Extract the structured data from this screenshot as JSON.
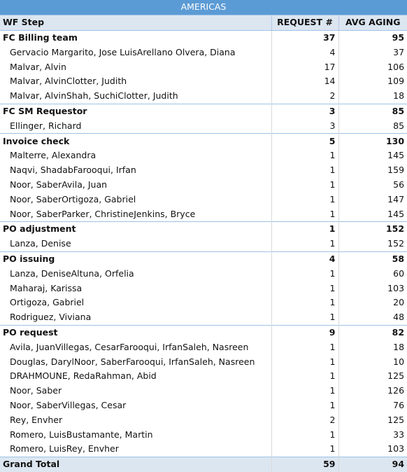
{
  "banner": "AMERICAS",
  "headers": {
    "step": "WF Step",
    "request": "REQUEST #",
    "aging": "AVG AGING"
  },
  "rows": [
    {
      "type": "group",
      "name": "FC Billing team",
      "request": "37",
      "aging": "95"
    },
    {
      "type": "detail",
      "name": "Gervacio Margarito, Jose LuisArellano Olvera, Diana",
      "request": "4",
      "aging": "37"
    },
    {
      "type": "detail",
      "name": "Malvar, Alvin",
      "request": "17",
      "aging": "106"
    },
    {
      "type": "detail",
      "name": "Malvar, AlvinClotter, Judith",
      "request": "14",
      "aging": "109"
    },
    {
      "type": "detail",
      "name": "Malvar, AlvinShah, SuchiClotter, Judith",
      "request": "2",
      "aging": "18"
    },
    {
      "type": "group",
      "name": "FC SM Requestor",
      "request": "3",
      "aging": "85"
    },
    {
      "type": "detail",
      "name": "Ellinger, Richard",
      "request": "3",
      "aging": "85"
    },
    {
      "type": "group",
      "name": "Invoice check",
      "request": "5",
      "aging": "130"
    },
    {
      "type": "detail",
      "name": "Malterre, Alexandra",
      "request": "1",
      "aging": "145"
    },
    {
      "type": "detail",
      "name": "Naqvi, ShadabFarooqui, Irfan",
      "request": "1",
      "aging": "159"
    },
    {
      "type": "detail",
      "name": "Noor, SaberAvila, Juan",
      "request": "1",
      "aging": "56"
    },
    {
      "type": "detail",
      "name": "Noor, SaberOrtigoza, Gabriel",
      "request": "1",
      "aging": "147"
    },
    {
      "type": "detail",
      "name": "Noor, SaberParker, ChristineJenkins, Bryce",
      "request": "1",
      "aging": "145"
    },
    {
      "type": "group",
      "name": "PO adjustment",
      "request": "1",
      "aging": "152"
    },
    {
      "type": "detail",
      "name": "Lanza, Denise",
      "request": "1",
      "aging": "152"
    },
    {
      "type": "group",
      "name": "PO issuing",
      "request": "4",
      "aging": "58"
    },
    {
      "type": "detail",
      "name": "Lanza, DeniseAltuna, Orfelia",
      "request": "1",
      "aging": "60"
    },
    {
      "type": "detail",
      "name": "Maharaj, Karissa",
      "request": "1",
      "aging": "103"
    },
    {
      "type": "detail",
      "name": "Ortigoza, Gabriel",
      "request": "1",
      "aging": "20"
    },
    {
      "type": "detail",
      "name": "Rodriguez, Viviana",
      "request": "1",
      "aging": "48"
    },
    {
      "type": "group",
      "name": "PO request",
      "request": "9",
      "aging": "82"
    },
    {
      "type": "detail",
      "name": "Avila, JuanVillegas, CesarFarooqui, IrfanSaleh, Nasreen",
      "request": "1",
      "aging": "18"
    },
    {
      "type": "detail",
      "name": "Douglas, DarylNoor, SaberFarooqui, IrfanSaleh, Nasreen",
      "request": "1",
      "aging": "10"
    },
    {
      "type": "detail",
      "name": "DRAHMOUNE, RedaRahman, Abid",
      "request": "1",
      "aging": "125"
    },
    {
      "type": "detail",
      "name": "Noor, Saber",
      "request": "1",
      "aging": "126"
    },
    {
      "type": "detail",
      "name": "Noor, SaberVillegas, Cesar",
      "request": "1",
      "aging": "76"
    },
    {
      "type": "detail",
      "name": "Rey, Envher",
      "request": "2",
      "aging": "125"
    },
    {
      "type": "detail",
      "name": "Romero, LuisBustamante, Martin",
      "request": "1",
      "aging": "33"
    },
    {
      "type": "detail",
      "name": "Romero, LuisRey, Envher",
      "request": "1",
      "aging": "103"
    }
  ],
  "grand_total": {
    "name": "Grand Total",
    "request": "59",
    "aging": "94"
  }
}
